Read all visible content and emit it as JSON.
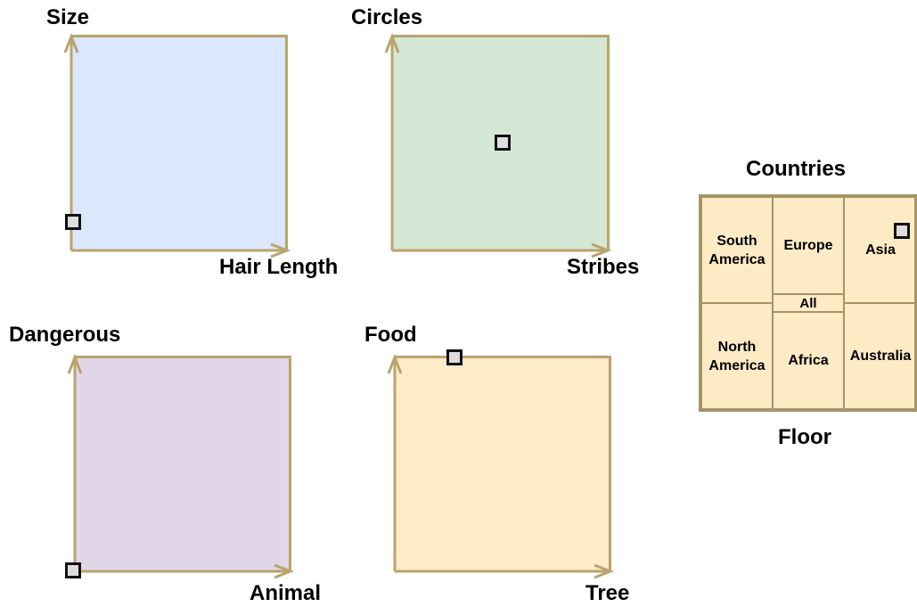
{
  "panels": [
    {
      "id": "size",
      "y_label": "Size",
      "x_label": "Hair Length",
      "fill": "#dce6fd",
      "handle_x": 0.0,
      "handle_y": 0.13
    },
    {
      "id": "circles",
      "y_label": "Circles",
      "x_label": "Stribes",
      "fill": "#d5e8d5",
      "handle_x": 0.52,
      "handle_y": 0.5
    },
    {
      "id": "dangerous",
      "y_label": "Dangerous",
      "x_label": "Animal",
      "fill": "#e1d6e8",
      "handle_x": 0.0,
      "handle_y": 0.0
    },
    {
      "id": "food",
      "y_label": "Food",
      "x_label": "Tree",
      "fill": "#feebc8",
      "handle_x": 0.27,
      "handle_y": 1.0
    }
  ],
  "countries": {
    "title": "Countries",
    "subtitle": "Floor",
    "fill": "#fdebc6",
    "border": "#a69469",
    "regions": {
      "south_america": "South\nAmerica",
      "europe": "Europe",
      "asia": "Asia",
      "all": "All",
      "north_america": "North\nAmerica",
      "africa": "Africa",
      "australia": "Australia"
    },
    "selected": "asia"
  },
  "colors": {
    "axis": "#b9a46e",
    "handle_fill": "#dddddd",
    "handle_border": "#111111"
  },
  "icons": {
    "handle": "square-handle-icon"
  }
}
